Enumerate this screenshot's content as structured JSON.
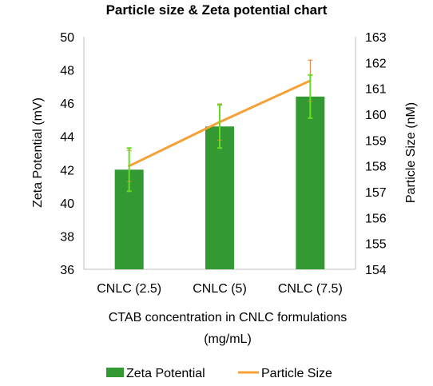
{
  "chart_data": {
    "type": "bar",
    "title": "Particle size & Zeta potential chart",
    "categories": [
      "CNLC (2.5)",
      "CNLC (5)",
      "CNLC (7.5)"
    ],
    "xlabel_lines": [
      "CTAB concentration in CNLC formulations",
      "(mg/mL)"
    ],
    "ylabel": "Zeta Potential  (mV)",
    "y2label": "Particle Size (nM)",
    "ylim": [
      36,
      50
    ],
    "yticks": [
      36,
      38,
      40,
      42,
      44,
      46,
      48,
      50
    ],
    "y2lim": [
      154,
      163
    ],
    "y2ticks": [
      154,
      155,
      156,
      157,
      158,
      159,
      160,
      161,
      162,
      163
    ],
    "grid": false,
    "legend_position": "bottom",
    "series": [
      {
        "name": "Zeta Potential",
        "kind": "bar",
        "axis": "left",
        "color": "#339933",
        "values": [
          42.0,
          44.6,
          46.4
        ],
        "error": [
          1.3,
          1.3,
          1.3
        ],
        "error_color": "#66dd22"
      },
      {
        "name": "Particle Size",
        "kind": "line",
        "axis": "right",
        "color": "#f7a035",
        "values": [
          158.0,
          159.7,
          161.3
        ],
        "error": [
          0.6,
          0.7,
          0.8
        ],
        "error_color": "#e07a30"
      }
    ]
  }
}
